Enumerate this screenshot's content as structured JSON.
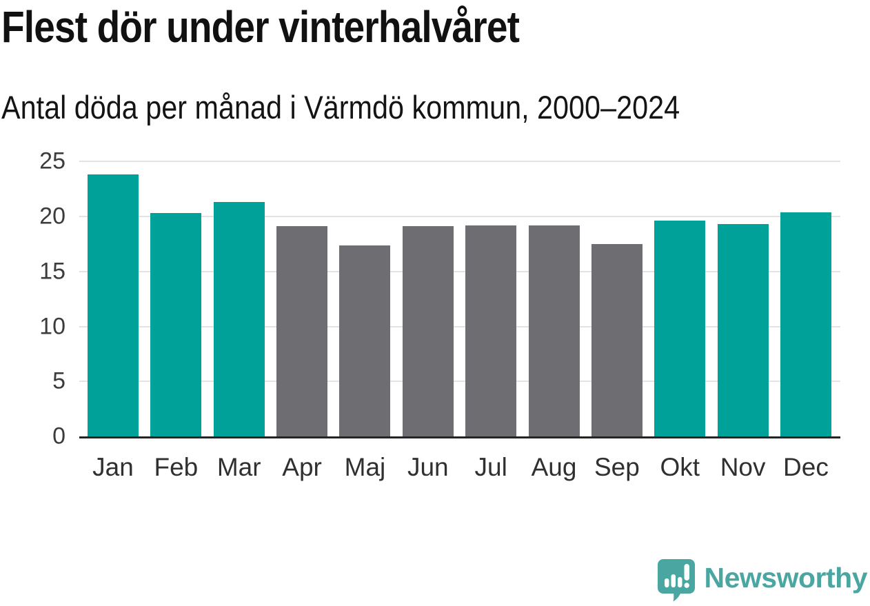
{
  "header": {
    "title": "Flest dör under vinterhalvåret",
    "subtitle": "Antal döda per månad i Värmdö kommun, 2000–2024"
  },
  "chart_data": {
    "type": "bar",
    "title": "Flest dör under vinterhalvåret",
    "subtitle": "Antal döda per månad i Värmdö kommun, 2000–2024",
    "xlabel": "",
    "ylabel": "",
    "categories": [
      "Jan",
      "Feb",
      "Mar",
      "Apr",
      "Maj",
      "Jun",
      "Jul",
      "Aug",
      "Sep",
      "Okt",
      "Nov",
      "Dec"
    ],
    "values": [
      23.8,
      20.3,
      21.3,
      19.1,
      17.4,
      19.1,
      19.2,
      19.2,
      17.5,
      19.6,
      19.3,
      20.4
    ],
    "highlighted": [
      true,
      true,
      true,
      false,
      false,
      false,
      false,
      false,
      false,
      true,
      true,
      true
    ],
    "palette": {
      "highlight": "#00a198",
      "muted": "#6d6d72",
      "gridline": "#e3e3e3",
      "axis": "#242424"
    },
    "yticks": [
      0,
      5,
      10,
      15,
      20,
      25
    ],
    "ylim": [
      0,
      26.4
    ],
    "grid": true,
    "legend": "none"
  },
  "footer": {
    "brand": "Newsworthy",
    "brand_color": "#4aa6a1"
  }
}
